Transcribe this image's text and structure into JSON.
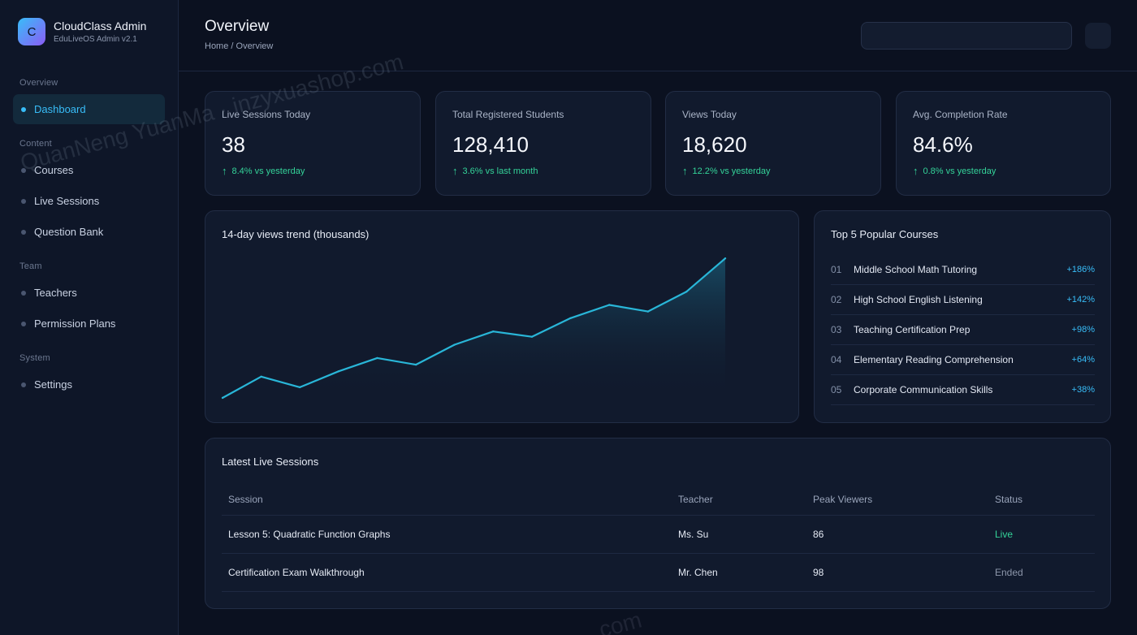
{
  "brand": {
    "logo_letter": "C",
    "name": "CloudClass Admin",
    "subtitle": "EduLiveOS Admin v2.1"
  },
  "sidebar": {
    "sections": [
      {
        "label": "Overview"
      },
      {
        "label": "Content"
      },
      {
        "label": "Team"
      },
      {
        "label": "System"
      }
    ],
    "items": [
      {
        "label": "Dashboard",
        "active": true
      },
      {
        "label": "Courses"
      },
      {
        "label": "Live Sessions"
      },
      {
        "label": "Question Bank"
      },
      {
        "label": "Teachers"
      },
      {
        "label": "Permission Plans"
      },
      {
        "label": "Settings"
      }
    ]
  },
  "header": {
    "title": "Overview",
    "breadcrumb": "Home / Overview",
    "search_value": ""
  },
  "stats": [
    {
      "label": "Live Sessions Today",
      "value": "38",
      "change": "8.4% vs yesterday"
    },
    {
      "label": "Total Registered Students",
      "value": "128,410",
      "change": "3.6% vs last month"
    },
    {
      "label": "Views Today",
      "value": "18,620",
      "change": "12.2% vs yesterday"
    },
    {
      "label": "Avg. Completion Rate",
      "value": "84.6%",
      "change": "0.8% vs yesterday"
    }
  ],
  "trend": {
    "title": "14-day views trend (thousands)"
  },
  "chart_data": {
    "type": "area",
    "title": "14-day views trend (thousands)",
    "x": [
      1,
      2,
      3,
      4,
      5,
      6,
      7,
      8,
      9,
      10,
      11,
      12,
      13,
      14
    ],
    "values": [
      0,
      1.6,
      0.8,
      2,
      3,
      2.5,
      4,
      5,
      4.6,
      6,
      7,
      6.5,
      8,
      10.5
    ],
    "ylim": [
      0,
      11
    ],
    "grid": false,
    "line_color": "#29b6d8"
  },
  "top_courses": {
    "title": "Top 5 Popular Courses",
    "items": [
      {
        "rank": "01",
        "name": "Middle School Math Tutoring",
        "growth": "+186%"
      },
      {
        "rank": "02",
        "name": "High School English Listening",
        "growth": "+142%"
      },
      {
        "rank": "03",
        "name": "Teaching Certification Prep",
        "growth": "+98%"
      },
      {
        "rank": "04",
        "name": "Elementary Reading Comprehension",
        "growth": "+64%"
      },
      {
        "rank": "05",
        "name": "Corporate Communication Skills",
        "growth": "+38%"
      }
    ]
  },
  "latest_sessions": {
    "title": "Latest Live Sessions",
    "columns": [
      "Session",
      "Teacher",
      "Peak Viewers",
      "Status"
    ],
    "rows": [
      {
        "session": "Lesson 5: Quadratic Function Graphs",
        "teacher": "Ms. Su",
        "peak": "86",
        "status": "Live"
      },
      {
        "session": "Certification Exam Walkthrough",
        "teacher": "Mr. Chen",
        "peak": "98",
        "status": "Ended"
      }
    ]
  },
  "watermark": "QuanNeng YuanMa · inzyxuashop.com",
  "watermark_partial": ".com",
  "colors": {
    "accent": "#38bdf8",
    "positive": "#34d399",
    "background": "#0b1120"
  }
}
